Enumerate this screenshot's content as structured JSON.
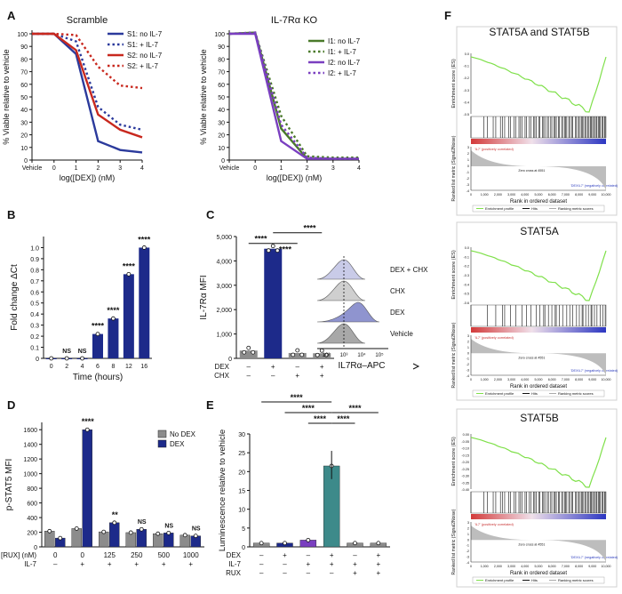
{
  "colors": {
    "blue": "#2b3a9c",
    "red": "#c8281e",
    "green": "#4a7a2a",
    "purple": "#7a3fc0",
    "gray": "#8c8c8c",
    "teal": "#3d8a8a",
    "navy": "#1d2a8a",
    "gsea_green": "#7fe04a"
  },
  "panels": {
    "A": "A",
    "B": "B",
    "C": "C",
    "D": "D",
    "E": "E",
    "F": "F"
  },
  "chart_data": [
    {
      "id": "A-left",
      "type": "line",
      "title": "Scramble",
      "xlabel": "log([DEX]) (nM)",
      "ylabel": "% Viable relative to vehicle",
      "x": [
        -1,
        0,
        1,
        2,
        3,
        4
      ],
      "xticks": [
        "Vehicle",
        "0",
        "1",
        "2",
        "3",
        "4"
      ],
      "yticks": [
        0,
        10,
        20,
        30,
        40,
        50,
        60,
        70,
        80,
        90,
        100
      ],
      "ylim": [
        0,
        100
      ],
      "series": [
        {
          "name": "S1: no IL-7",
          "color": "#2b3a9c",
          "dash": false,
          "values": [
            100,
            100,
            84,
            15,
            8,
            6
          ]
        },
        {
          "name": "S1: + IL-7",
          "color": "#2b3a9c",
          "dash": true,
          "values": [
            100,
            100,
            94,
            42,
            28,
            24
          ]
        },
        {
          "name": "S2: no IL-7",
          "color": "#c8281e",
          "dash": false,
          "values": [
            100,
            100,
            87,
            36,
            24,
            18
          ]
        },
        {
          "name": "S2: + IL-7",
          "color": "#c8281e",
          "dash": true,
          "values": [
            100,
            100,
            99,
            74,
            59,
            57
          ]
        }
      ]
    },
    {
      "id": "A-right",
      "type": "line",
      "title": "IL-7Rα KO",
      "xlabel": "log([DEX]) (nM)",
      "ylabel": "% Viable relative to vehicle",
      "x": [
        -1,
        0,
        1,
        2,
        3,
        4
      ],
      "xticks": [
        "Vehicle",
        "0",
        "1",
        "2",
        "3",
        "4"
      ],
      "yticks": [
        0,
        10,
        20,
        30,
        40,
        50,
        60,
        70,
        80,
        90,
        100
      ],
      "ylim": [
        0,
        100
      ],
      "series": [
        {
          "name": "I1: no IL-7",
          "color": "#4a7a2a",
          "dash": false,
          "values": [
            100,
            101,
            25,
            1,
            1,
            1
          ]
        },
        {
          "name": "I1: + IL-7",
          "color": "#4a7a2a",
          "dash": true,
          "values": [
            100,
            101,
            35,
            3,
            2,
            2
          ]
        },
        {
          "name": "I2: no IL-7",
          "color": "#7a3fc0",
          "dash": false,
          "values": [
            100,
            100,
            15,
            1,
            1,
            1
          ]
        },
        {
          "name": "I2: + IL-7",
          "color": "#7a3fc0",
          "dash": true,
          "values": [
            100,
            101,
            28,
            2,
            1,
            1
          ]
        }
      ]
    },
    {
      "id": "B",
      "type": "bar",
      "xlabel": "Time (hours)",
      "ylabel": "Fold change ΔCt",
      "categories": [
        "0",
        "2",
        "4",
        "6",
        "8",
        "12",
        "16"
      ],
      "values": [
        0,
        0,
        0,
        0.22,
        0.36,
        0.76,
        1.0
      ],
      "labels": [
        "",
        "NS",
        "NS",
        "****",
        "****",
        "****",
        "****"
      ],
      "yticks": [
        "0",
        "0.1",
        "0.2",
        "0.3",
        "0.4",
        "0.5",
        "0.6",
        "0.7",
        "0.8",
        "0.9",
        "1.0"
      ],
      "ylim": [
        0,
        1.1
      ]
    },
    {
      "id": "C",
      "type": "bar",
      "ylabel": "IL-7Rα MFI",
      "values": [
        320,
        4500,
        220,
        210
      ],
      "bar_colors": [
        "#8c8c8c",
        "#1d2a8a",
        "#8c8c8c",
        "#8c8c8c"
      ],
      "yticks": [
        "0",
        "1,000",
        "2,000",
        "3,000",
        "4,000",
        "5,000"
      ],
      "ylim": [
        0,
        5000
      ],
      "rows": [
        {
          "label": "DEX",
          "signs": [
            "–",
            "+",
            "–",
            "+"
          ]
        },
        {
          "label": "CHX",
          "signs": [
            "–",
            "–",
            "+",
            "+"
          ]
        }
      ],
      "significance": [
        "****",
        "****",
        "****"
      ],
      "inset": {
        "xlabel": "IL7Rα–APC",
        "tracks": [
          "DEX + CHX",
          "CHX",
          "DEX",
          "Vehicle"
        ],
        "xticks": [
          "10²",
          "10³",
          "10⁴",
          "10⁵"
        ]
      }
    },
    {
      "id": "D",
      "type": "bar",
      "ylabel": "p-STAT5 MFI",
      "legend": [
        "No DEX",
        "DEX"
      ],
      "bar_colors": [
        "#8c8c8c",
        "#1d2a8a"
      ],
      "series": [
        {
          "name": "No DEX",
          "values": [
            215,
            250,
            205,
            195,
            180,
            160
          ]
        },
        {
          "name": "DEX",
          "values": [
            120,
            1600,
            330,
            240,
            190,
            150
          ]
        }
      ],
      "yticks": [
        "0",
        "200",
        "400",
        "600",
        "800",
        "1000",
        "1200",
        "1400",
        "1600"
      ],
      "ylim": [
        0,
        1700
      ],
      "rows": [
        {
          "label": "[RUX] (nM)",
          "signs": [
            "0",
            "0",
            "125",
            "250",
            "500",
            "1000"
          ]
        },
        {
          "label": "IL-7",
          "signs": [
            "–",
            "+",
            "+",
            "+",
            "+",
            "+"
          ]
        }
      ],
      "labels": [
        "",
        "****",
        "**",
        "NS",
        "NS",
        "NS"
      ]
    },
    {
      "id": "E",
      "type": "bar",
      "ylabel": "Luminescence relative to vehicle",
      "values": [
        1,
        1,
        1.8,
        21.5,
        1,
        1
      ],
      "bar_colors": [
        "#8c8c8c",
        "#1d2a8a",
        "#7a3fc0",
        "#3d8a8a",
        "#8c8c8c",
        "#8c8c8c"
      ],
      "yticks": [
        "0",
        "5",
        "10",
        "15",
        "20",
        "25",
        "30"
      ],
      "ylim": [
        0,
        30
      ],
      "rows": [
        {
          "label": "DEX",
          "signs": [
            "–",
            "+",
            "–",
            "+",
            "–",
            "+"
          ]
        },
        {
          "label": "IL-7",
          "signs": [
            "–",
            "–",
            "+",
            "+",
            "+",
            "+"
          ]
        },
        {
          "label": "RUX",
          "signs": [
            "–",
            "–",
            "–",
            "–",
            "+",
            "+"
          ]
        }
      ],
      "significance": [
        "****",
        "****",
        "****",
        "****",
        "****"
      ]
    },
    {
      "id": "F",
      "type": "line",
      "gsea": [
        {
          "title": "STAT5A and STAT5B",
          "es_ticks": [
            "0.0",
            "-0.1",
            "-0.2",
            "-0.3",
            "-0.4",
            "-0.5"
          ],
          "es_min": -0.52
        },
        {
          "title": "STAT5A",
          "es_ticks": [
            "0.0",
            "-0.1",
            "-0.2",
            "-0.3",
            "-0.4",
            "-0.5",
            "-0.6"
          ],
          "es_min": -0.6
        },
        {
          "title": "STAT5B",
          "es_ticks": [
            "0.00",
            "-0.05",
            "-0.10",
            "-0.15",
            "-0.20",
            "-0.25",
            "-0.30",
            "-0.35",
            "-0.40"
          ],
          "es_min": -0.4
        }
      ],
      "es_label": "Enrichment score (ES)",
      "metric_label": "Ranked list metric (Signal2Noise)",
      "rank_label": "Rank in ordered dataset",
      "rank_ticks": [
        "0",
        "1,000",
        "2,000",
        "3,000",
        "4,000",
        "5,000",
        "6,000",
        "7,000",
        "8,000",
        "9,000",
        "10,000"
      ],
      "metric_ticks": [
        "3",
        "2",
        "1",
        "0",
        "-1",
        "-2",
        "-3",
        "-4"
      ],
      "pos_label": "'IL7' (positively correlated)",
      "neg_label": "'DEXIL7' (negatively correlated)",
      "zero_cross": "Zero cross at 4551",
      "legend": [
        "Enrichment profile",
        "Hits",
        "Ranking metric scores"
      ]
    }
  ]
}
